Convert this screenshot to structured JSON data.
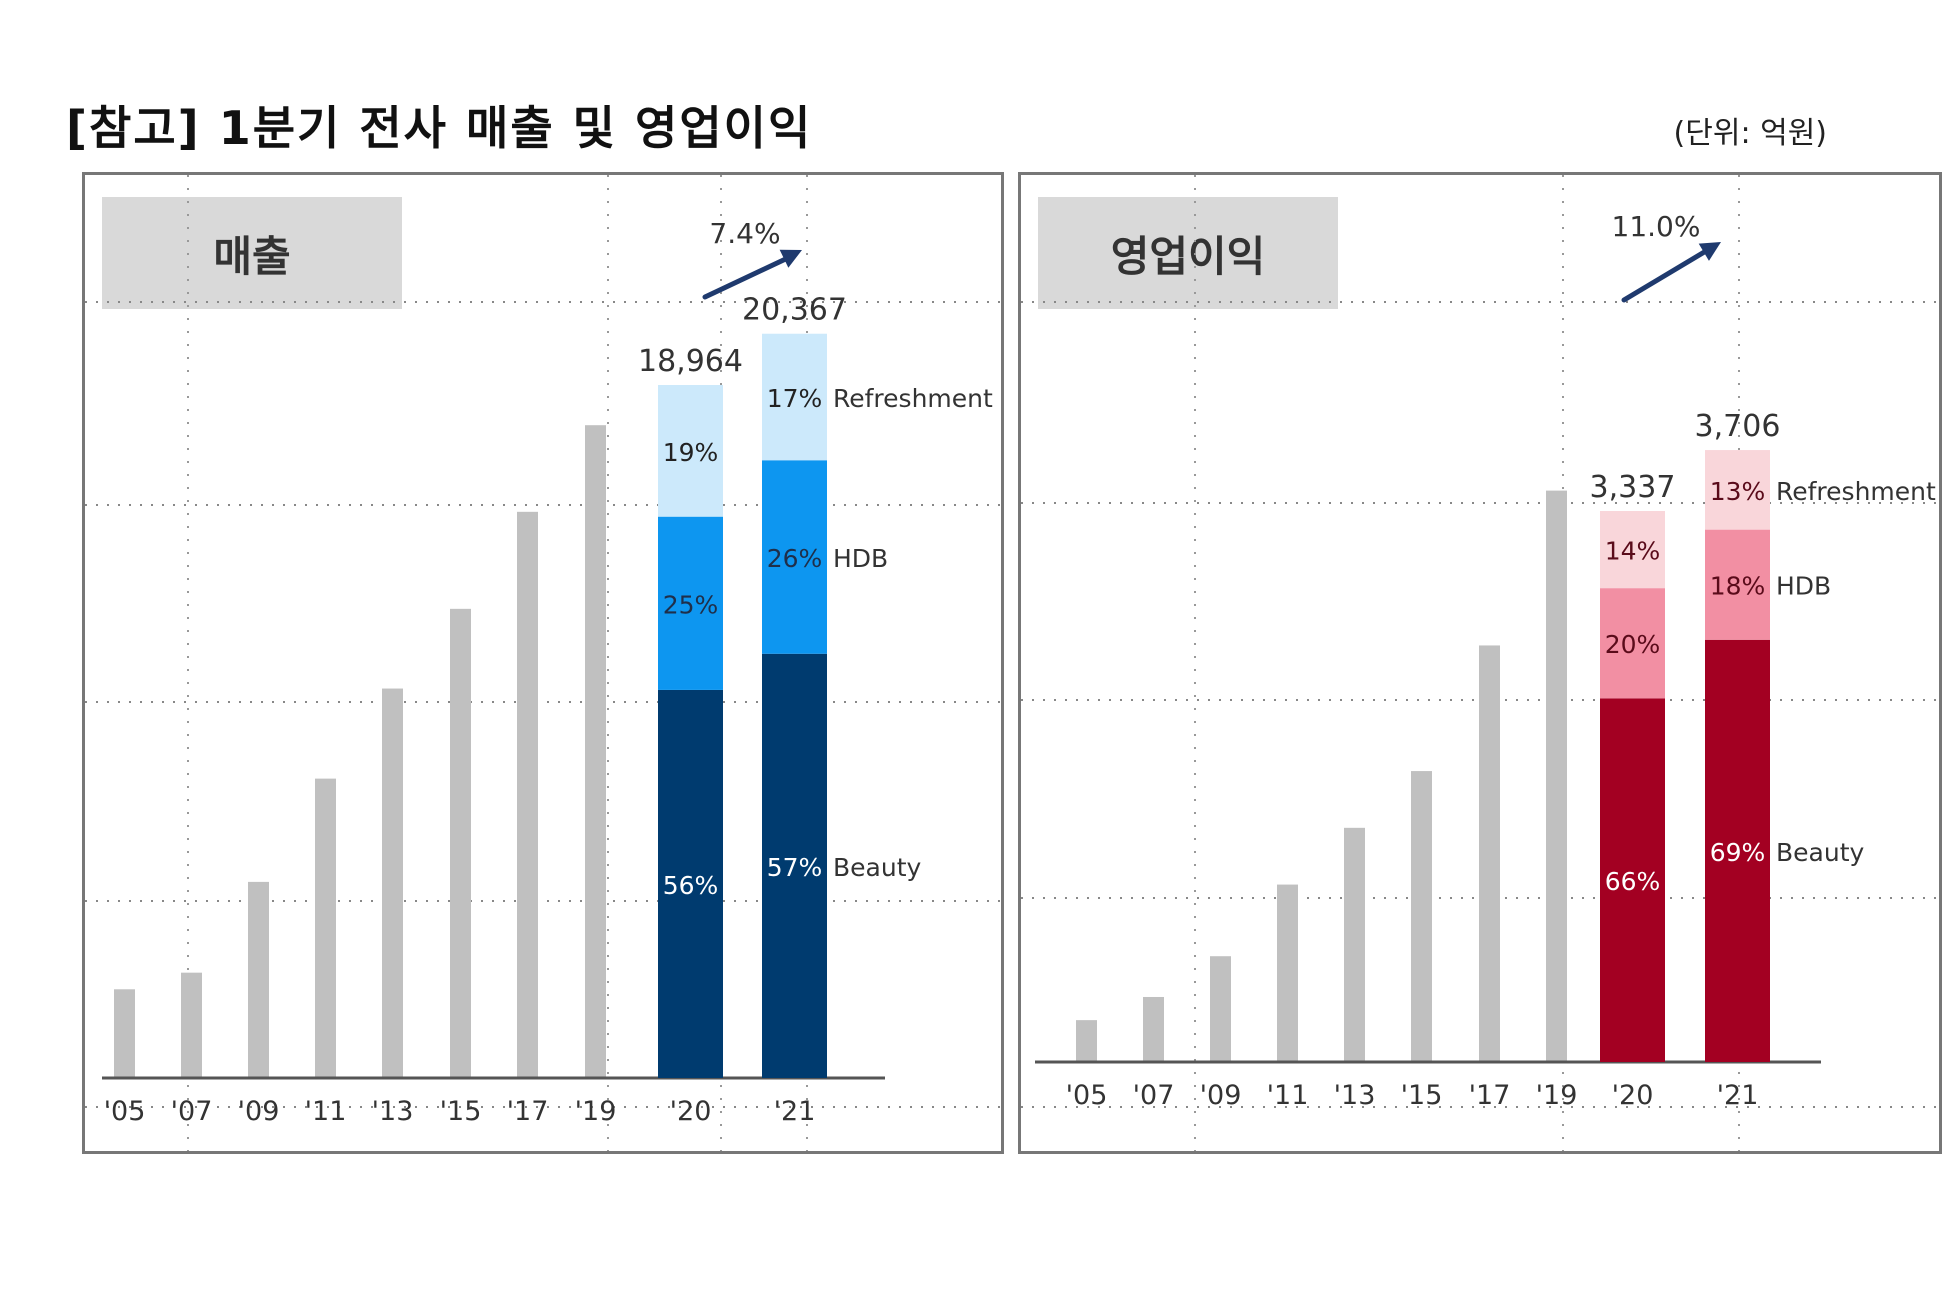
{
  "header": {
    "title": "[참고] 1분기 전사 매출 및 영업이익",
    "unit": "(단위: 억원)"
  },
  "colors": {
    "history_bar": "#c0c0c0",
    "sales_refreshment": "#cce9fb",
    "sales_hdb": "#0d96f0",
    "sales_beauty": "#003b6f",
    "profit_refreshment": "#f9d6da",
    "profit_hdb": "#f28fa3",
    "profit_beauty": "#a30022",
    "arrow": "#1f3a6e"
  },
  "chart_data": [
    {
      "type": "bar",
      "title": "매출",
      "categories": [
        "'05",
        "'07",
        "'09",
        "'11",
        "'13",
        "'15",
        "'17",
        "'19",
        "'20",
        "'21"
      ],
      "history_values_relative_to_2020": [
        0.128,
        0.152,
        0.283,
        0.432,
        0.562,
        0.677,
        0.817,
        0.942
      ],
      "growth_label": "7.4%",
      "stacked": [
        {
          "category": "'20",
          "total_label": "18,964",
          "total": 18964,
          "segments": [
            {
              "name": "Beauty",
              "pct": 56,
              "label": "56%"
            },
            {
              "name": "HDB",
              "pct": 25,
              "label": "25%"
            },
            {
              "name": "Refreshment",
              "pct": 19,
              "label": "19%"
            }
          ]
        },
        {
          "category": "'21",
          "total_label": "20,367",
          "total": 20367,
          "segments": [
            {
              "name": "Beauty",
              "pct": 57,
              "label": "57%"
            },
            {
              "name": "HDB",
              "pct": 26,
              "label": "26%"
            },
            {
              "name": "Refreshment",
              "pct": 17,
              "label": "17%"
            }
          ]
        }
      ],
      "legend": [
        "Refreshment",
        "HDB",
        "Beauty"
      ],
      "xlabel": "",
      "ylabel": ""
    },
    {
      "type": "bar",
      "title": "영업이익",
      "categories": [
        "'05",
        "'07",
        "'09",
        "'11",
        "'13",
        "'15",
        "'17",
        "'19",
        "'20",
        "'21"
      ],
      "history_values_relative_to_2020": [
        0.076,
        0.118,
        0.192,
        0.322,
        0.425,
        0.528,
        0.756,
        1.037
      ],
      "growth_label": "11.0%",
      "stacked": [
        {
          "category": "'20",
          "total_label": "3,337",
          "total": 3337,
          "segments": [
            {
              "name": "Beauty",
              "pct": 66,
              "label": "66%"
            },
            {
              "name": "HDB",
              "pct": 20,
              "label": "20%"
            },
            {
              "name": "Refreshment",
              "pct": 14,
              "label": "14%"
            }
          ]
        },
        {
          "category": "'21",
          "total_label": "3,706",
          "total": 3706,
          "segments": [
            {
              "name": "Beauty",
              "pct": 69,
              "label": "69%"
            },
            {
              "name": "HDB",
              "pct": 18,
              "label": "18%"
            },
            {
              "name": "Refreshment",
              "pct": 13,
              "label": "13%"
            }
          ]
        }
      ],
      "legend": [
        "Refreshment",
        "HDB",
        "Beauty"
      ],
      "xlabel": "",
      "ylabel": ""
    }
  ]
}
